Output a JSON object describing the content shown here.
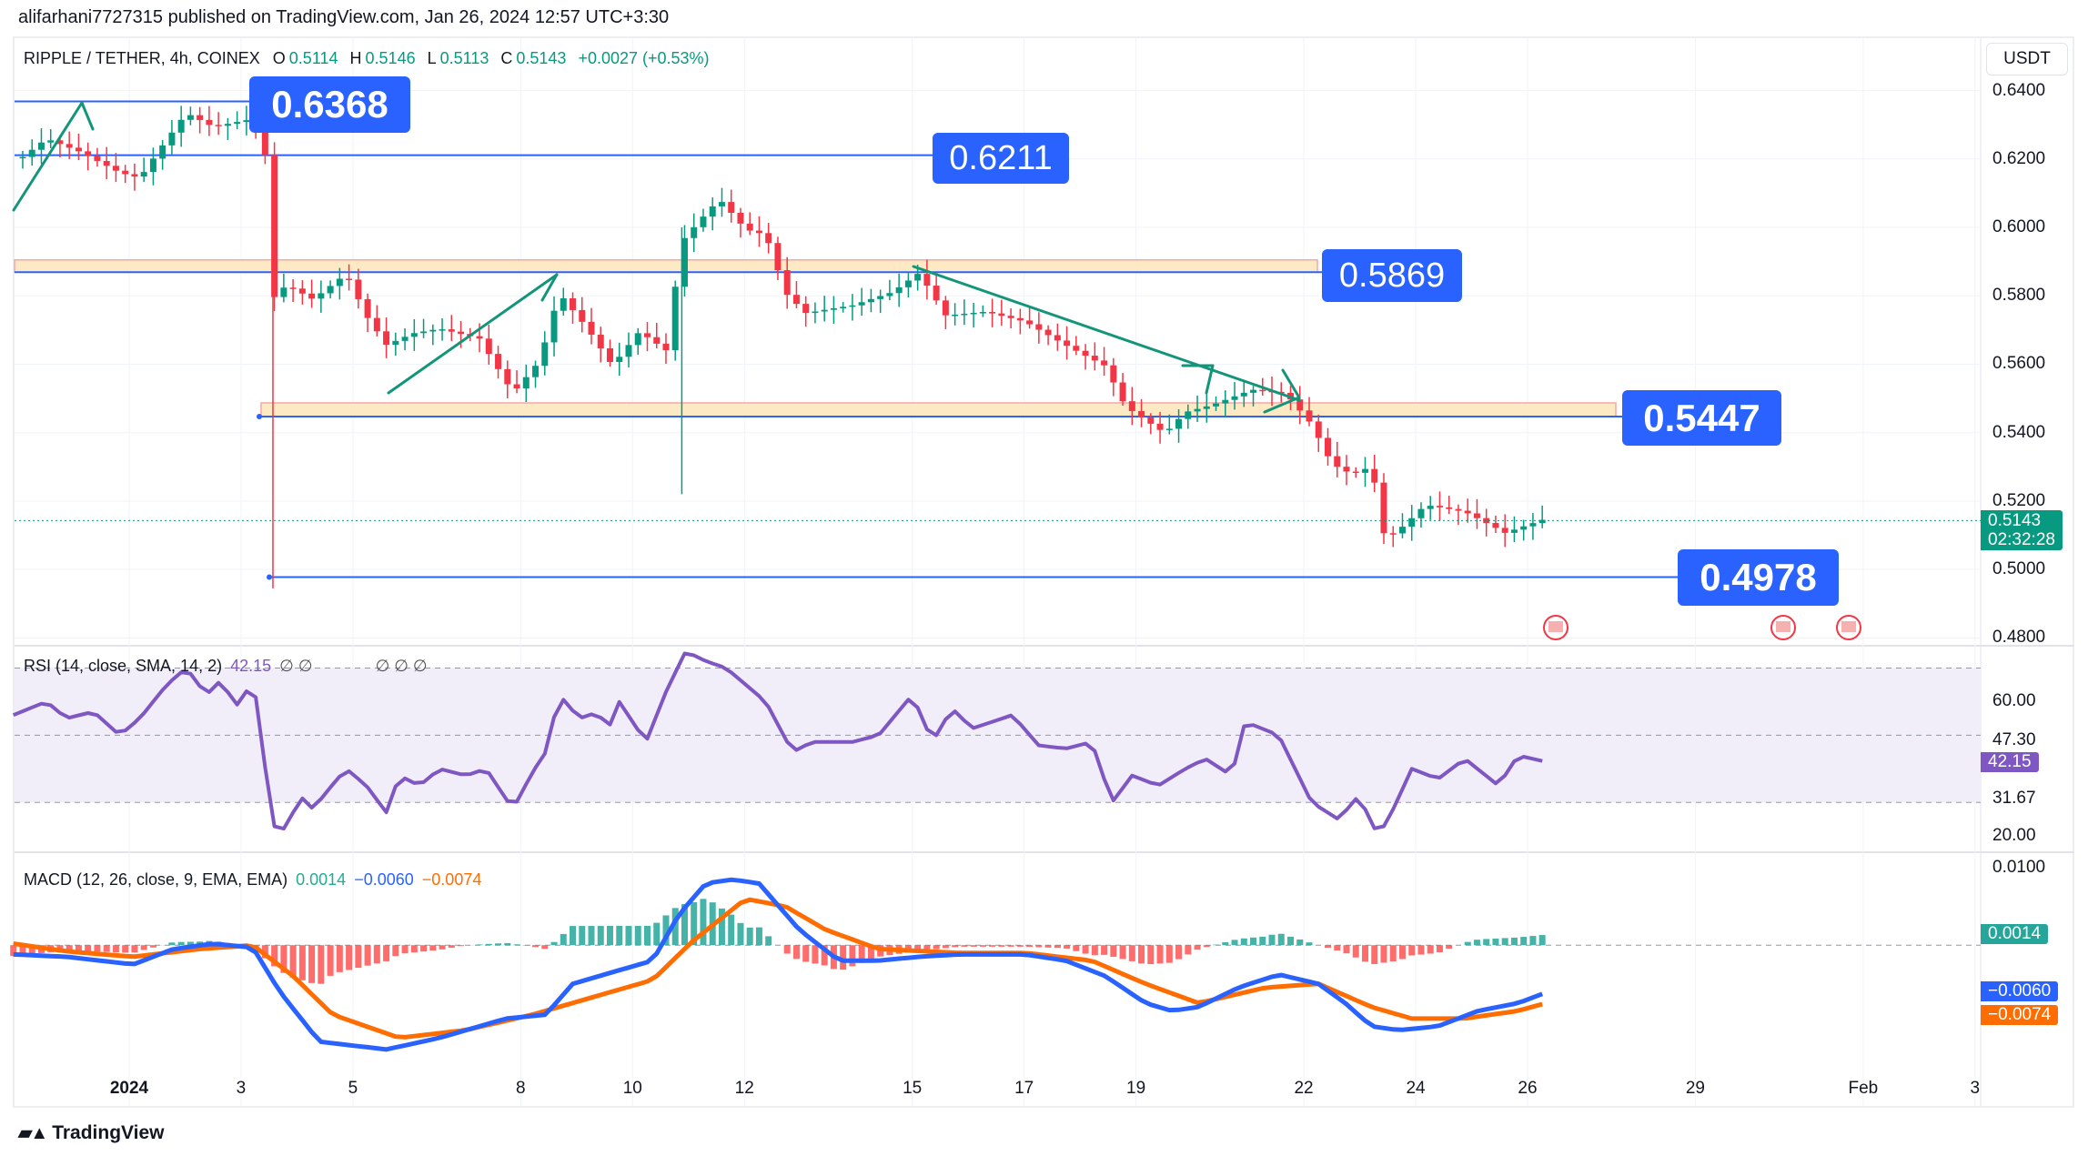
{
  "published": "alifarhani7727315 published on TradingView.com, Jan 26, 2024 12:57 UTC+3:30",
  "symbol": {
    "title": "RIPPLE / TETHER, 4h, COINEX",
    "o_label": "O",
    "o": "0.5114",
    "h_label": "H",
    "h": "0.5146",
    "l_label": "L",
    "l": "0.5113",
    "c_label": "C",
    "c": "0.5143",
    "change": "+0.0027 (+0.53%)"
  },
  "currency": "USDT",
  "price_axis": [
    "0.6400",
    "0.6200",
    "0.6000",
    "0.5800",
    "0.5600",
    "0.5400",
    "0.5200",
    "0.5000",
    "0.4800"
  ],
  "last_price": {
    "value": "0.5143",
    "countdown": "02:32:28"
  },
  "annotations": [
    "0.6368",
    "0.6211",
    "0.5869",
    "0.5447",
    "0.4978"
  ],
  "rsi": {
    "legend": "RSI (14, close, SMA, 14, 2)",
    "value": "42.15",
    "na": "∅ ∅",
    "na2": "∅ ∅ ∅",
    "axis": [
      "60.00",
      "47.30",
      "31.67",
      "20.00"
    ],
    "badge": "42.15"
  },
  "macd": {
    "legend": "MACD (12, 26, close, 9, EMA, EMA)",
    "hist": "0.0014",
    "macd": "−0.0060",
    "signal": "−0.0074",
    "axis": [
      "0.0100"
    ],
    "badges": [
      "0.0014",
      "−0.0060",
      "−0.0074"
    ]
  },
  "dates": [
    {
      "label": "2024",
      "day": 1
    },
    {
      "label": "3",
      "day": 3
    },
    {
      "label": "5",
      "day": 5
    },
    {
      "label": "8",
      "day": 8
    },
    {
      "label": "10",
      "day": 10
    },
    {
      "label": "12",
      "day": 12
    },
    {
      "label": "15",
      "day": 15
    },
    {
      "label": "17",
      "day": 17
    },
    {
      "label": "19",
      "day": 19
    },
    {
      "label": "22",
      "day": 22
    },
    {
      "label": "24",
      "day": 24
    },
    {
      "label": "26",
      "day": 26
    },
    {
      "label": "29",
      "day": 29
    },
    {
      "label": "Feb",
      "day": 32
    },
    {
      "label": "3",
      "day": 34
    }
  ],
  "brand": "TradingView",
  "colors": {
    "up": "#089981",
    "down": "#f23645",
    "line": "#2962ff",
    "zone": "#fde9c4",
    "rsi": "#7e57c2",
    "macd": "#2962ff",
    "signal": "#ff6d00"
  },
  "chart_data": {
    "type": "candlestick",
    "interval": "4h",
    "x_unit": "day of January 2024",
    "price_anchors": [
      [
        -1.07,
        0.6205
      ],
      [
        -0.48,
        0.6275
      ],
      [
        0.12,
        0.623
      ],
      [
        0.83,
        0.616
      ],
      [
        1.19,
        0.614
      ],
      [
        1.55,
        0.622
      ],
      [
        2.02,
        0.632
      ],
      [
        2.5,
        0.6275
      ],
      [
        3.21,
        0.6295
      ],
      [
        3.45,
        0.618
      ],
      [
        3.57,
        0.577
      ],
      [
        3.81,
        0.581
      ],
      [
        4.29,
        0.577
      ],
      [
        4.88,
        0.585
      ],
      [
        5.24,
        0.573
      ],
      [
        5.6,
        0.565
      ],
      [
        6.07,
        0.569
      ],
      [
        6.55,
        0.571
      ],
      [
        7.26,
        0.569
      ],
      [
        7.86,
        0.5535
      ],
      [
        8.33,
        0.563
      ],
      [
        8.69,
        0.583
      ],
      [
        9.17,
        0.573
      ],
      [
        9.64,
        0.5615
      ],
      [
        10.12,
        0.571
      ],
      [
        10.6,
        0.565
      ],
      [
        10.88,
        0.5965
      ],
      [
        11.19,
        0.602
      ],
      [
        11.55,
        0.608
      ],
      [
        12.02,
        0.5985
      ],
      [
        12.38,
        0.5965
      ],
      [
        12.74,
        0.579
      ],
      [
        13.1,
        0.573
      ],
      [
        13.93,
        0.575
      ],
      [
        14.64,
        0.579
      ],
      [
        15.12,
        0.585
      ],
      [
        15.6,
        0.573
      ],
      [
        16.31,
        0.575
      ],
      [
        17.02,
        0.573
      ],
      [
        17.74,
        0.567
      ],
      [
        18.45,
        0.5615
      ],
      [
        18.81,
        0.5498
      ],
      [
        19.52,
        0.542
      ],
      [
        19.88,
        0.548
      ],
      [
        20.36,
        0.5498
      ],
      [
        21.07,
        0.5535
      ],
      [
        21.67,
        0.5517
      ],
      [
        22.14,
        0.542
      ],
      [
        22.5,
        0.53
      ],
      [
        22.86,
        0.5265
      ],
      [
        23.21,
        0.5285
      ],
      [
        23.45,
        0.507
      ],
      [
        23.81,
        0.511
      ],
      [
        24.17,
        0.5167
      ],
      [
        24.88,
        0.5147
      ],
      [
        25.6,
        0.509
      ],
      [
        26.38,
        0.5143
      ]
    ],
    "price_range": [
      0.475,
      0.645
    ],
    "levels": [
      0.6368,
      0.6211,
      0.5869,
      0.5447,
      0.4978
    ],
    "zones": [
      [
        0.5869,
        0.5905
      ],
      [
        0.5447,
        0.5487
      ]
    ],
    "rsi_anchors": [
      [
        -1.07,
        56
      ],
      [
        -0.48,
        60
      ],
      [
        -0.12,
        55
      ],
      [
        0.36,
        57
      ],
      [
        0.83,
        50
      ],
      [
        1.19,
        55
      ],
      [
        1.67,
        65
      ],
      [
        2.02,
        70
      ],
      [
        2.38,
        62
      ],
      [
        2.62,
        66
      ],
      [
        2.98,
        58
      ],
      [
        3.21,
        68
      ],
      [
        3.57,
        23
      ],
      [
        3.81,
        22
      ],
      [
        4.05,
        32
      ],
      [
        4.29,
        28
      ],
      [
        4.52,
        33
      ],
      [
        4.88,
        40
      ],
      [
        5.24,
        35
      ],
      [
        5.6,
        27
      ],
      [
        5.83,
        38
      ],
      [
        6.19,
        35
      ],
      [
        6.55,
        40
      ],
      [
        7.02,
        38
      ],
      [
        7.38,
        40
      ],
      [
        7.86,
        28
      ],
      [
        8.21,
        39
      ],
      [
        8.45,
        45
      ],
      [
        8.69,
        62
      ],
      [
        9.05,
        55
      ],
      [
        9.4,
        57
      ],
      [
        9.52,
        50
      ],
      [
        9.76,
        60
      ],
      [
        10.24,
        48
      ],
      [
        10.6,
        63
      ],
      [
        10.95,
        75
      ],
      [
        11.31,
        72
      ],
      [
        11.67,
        70
      ],
      [
        12.38,
        60
      ],
      [
        12.86,
        45
      ],
      [
        13.21,
        48
      ],
      [
        13.93,
        48
      ],
      [
        14.4,
        50
      ],
      [
        15.0,
        62
      ],
      [
        15.36,
        48
      ],
      [
        15.71,
        58
      ],
      [
        16.07,
        52
      ],
      [
        16.79,
        56
      ],
      [
        17.26,
        47
      ],
      [
        17.74,
        46
      ],
      [
        18.21,
        48
      ],
      [
        18.57,
        30
      ],
      [
        18.93,
        38
      ],
      [
        19.4,
        35
      ],
      [
        19.88,
        40
      ],
      [
        20.24,
        43
      ],
      [
        20.71,
        38
      ],
      [
        20.95,
        54
      ],
      [
        21.55,
        50
      ],
      [
        22.14,
        30
      ],
      [
        22.62,
        25
      ],
      [
        22.98,
        32
      ],
      [
        23.33,
        20
      ],
      [
        23.57,
        27
      ],
      [
        23.93,
        40
      ],
      [
        24.4,
        37
      ],
      [
        24.88,
        43
      ],
      [
        25.48,
        35
      ],
      [
        25.83,
        44
      ],
      [
        26.31,
        42.15
      ]
    ],
    "rsi_bands": [
      70,
      50,
      30
    ],
    "macd_anchors": [
      [
        -1.07,
        -0.0012
      ],
      [
        -0.12,
        -0.0015
      ],
      [
        1.07,
        -0.0025
      ],
      [
        1.79,
        -0.0005
      ],
      [
        2.5,
        0.0002
      ],
      [
        3.21,
        -0.0003
      ],
      [
        3.69,
        -0.006
      ],
      [
        4.4,
        -0.0125
      ],
      [
        5.6,
        -0.0135
      ],
      [
        6.55,
        -0.012
      ],
      [
        7.74,
        -0.0095
      ],
      [
        8.45,
        -0.009
      ],
      [
        8.93,
        -0.005
      ],
      [
        9.64,
        -0.0035
      ],
      [
        10.36,
        -0.002
      ],
      [
        10.83,
        0.004
      ],
      [
        11.31,
        0.008
      ],
      [
        11.79,
        0.0085
      ],
      [
        12.26,
        0.008
      ],
      [
        12.98,
        0.002
      ],
      [
        13.69,
        -0.002
      ],
      [
        14.4,
        -0.002
      ],
      [
        15.12,
        -0.0015
      ],
      [
        15.83,
        -0.0012
      ],
      [
        17.02,
        -0.0012
      ],
      [
        17.74,
        -0.002
      ],
      [
        18.45,
        -0.004
      ],
      [
        19.17,
        -0.0075
      ],
      [
        19.64,
        -0.0085
      ],
      [
        20.12,
        -0.008
      ],
      [
        20.83,
        -0.0055
      ],
      [
        21.55,
        -0.0038
      ],
      [
        22.26,
        -0.005
      ],
      [
        22.74,
        -0.0075
      ],
      [
        23.21,
        -0.0105
      ],
      [
        23.69,
        -0.011
      ],
      [
        24.4,
        -0.0105
      ],
      [
        25.12,
        -0.0085
      ],
      [
        25.83,
        -0.0075
      ],
      [
        26.38,
        -0.006
      ]
    ],
    "signal_anchors": [
      [
        -1.07,
        0.0002
      ],
      [
        -0.12,
        -0.0008
      ],
      [
        1.07,
        -0.0015
      ],
      [
        2.26,
        -0.0005
      ],
      [
        3.21,
        0.0
      ],
      [
        3.93,
        -0.004
      ],
      [
        4.64,
        -0.009
      ],
      [
        5.83,
        -0.012
      ],
      [
        7.02,
        -0.011
      ],
      [
        8.21,
        -0.009
      ],
      [
        9.4,
        -0.0065
      ],
      [
        10.36,
        -0.0045
      ],
      [
        11.07,
        0.0005
      ],
      [
        12.02,
        0.006
      ],
      [
        12.74,
        0.005
      ],
      [
        13.45,
        0.002
      ],
      [
        14.4,
        -0.0005
      ],
      [
        15.83,
        -0.001
      ],
      [
        17.02,
        -0.001
      ],
      [
        18.21,
        -0.002
      ],
      [
        19.17,
        -0.005
      ],
      [
        20.12,
        -0.0075
      ],
      [
        21.31,
        -0.0055
      ],
      [
        22.26,
        -0.005
      ],
      [
        23.21,
        -0.008
      ],
      [
        23.93,
        -0.0095
      ],
      [
        24.88,
        -0.0095
      ],
      [
        25.83,
        -0.0085
      ],
      [
        26.38,
        -0.0074
      ]
    ]
  }
}
